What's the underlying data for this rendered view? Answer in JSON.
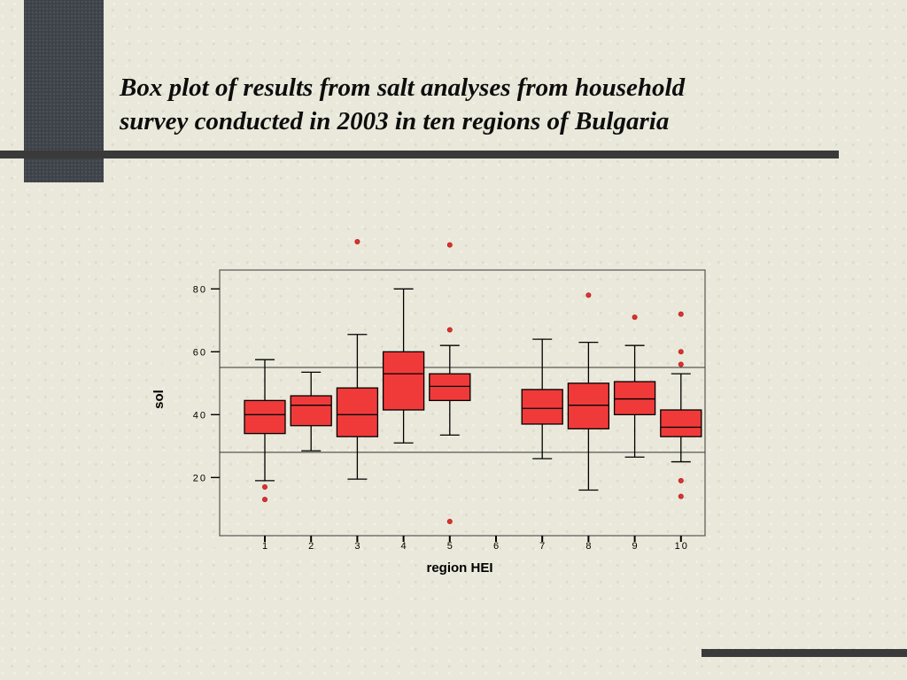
{
  "slide": {
    "title_line1": "Box plot of results from salt analyses from household",
    "title_line2": "survey conducted in 2003 in ten regions of Bulgaria"
  },
  "chart_data": {
    "type": "box",
    "xlabel": "region HEI",
    "ylabel": "sol",
    "categories": [
      "1",
      "2",
      "3",
      "4",
      "5",
      "6",
      "7",
      "8",
      "9",
      "10"
    ],
    "yticks": [
      20,
      40,
      60,
      80
    ],
    "ylim": [
      1.5,
      86
    ],
    "reference_lines": [
      55,
      28
    ],
    "grid": false,
    "legend": "none",
    "colors": {
      "box_fill": "#f03a3a",
      "box_edge": "#000000",
      "outlier": "#e03030"
    },
    "boxes": [
      {
        "category": "1",
        "whisker_low": 19,
        "q1": 34,
        "median": 40,
        "q3": 44.5,
        "whisker_high": 57.5,
        "outliers": [
          17,
          13
        ]
      },
      {
        "category": "2",
        "whisker_low": 28.5,
        "q1": 36.5,
        "median": 43,
        "q3": 46,
        "whisker_high": 53.5,
        "outliers": []
      },
      {
        "category": "3",
        "whisker_low": 19.5,
        "q1": 33,
        "median": 40,
        "q3": 48.5,
        "whisker_high": 65.5,
        "outliers": [
          95
        ]
      },
      {
        "category": "4",
        "whisker_low": 31,
        "q1": 41.5,
        "median": 53,
        "q3": 60,
        "whisker_high": 80,
        "outliers": []
      },
      {
        "category": "5",
        "whisker_low": 33.5,
        "q1": 44.5,
        "median": 49,
        "q3": 53,
        "whisker_high": 62,
        "outliers": [
          94,
          67,
          6
        ]
      },
      {
        "category": "7",
        "whisker_low": 26,
        "q1": 37,
        "median": 42,
        "q3": 48,
        "whisker_high": 64,
        "outliers": []
      },
      {
        "category": "8",
        "whisker_low": 16,
        "q1": 35.5,
        "median": 43,
        "q3": 50,
        "whisker_high": 63,
        "outliers": [
          78
        ]
      },
      {
        "category": "9",
        "whisker_low": 26.5,
        "q1": 40,
        "median": 45,
        "q3": 50.5,
        "whisker_high": 62,
        "outliers": [
          71
        ]
      },
      {
        "category": "10",
        "whisker_low": 25,
        "q1": 33,
        "median": 36,
        "q3": 41.5,
        "whisker_high": 53,
        "outliers": [
          72,
          60,
          56,
          19,
          14
        ]
      }
    ]
  }
}
